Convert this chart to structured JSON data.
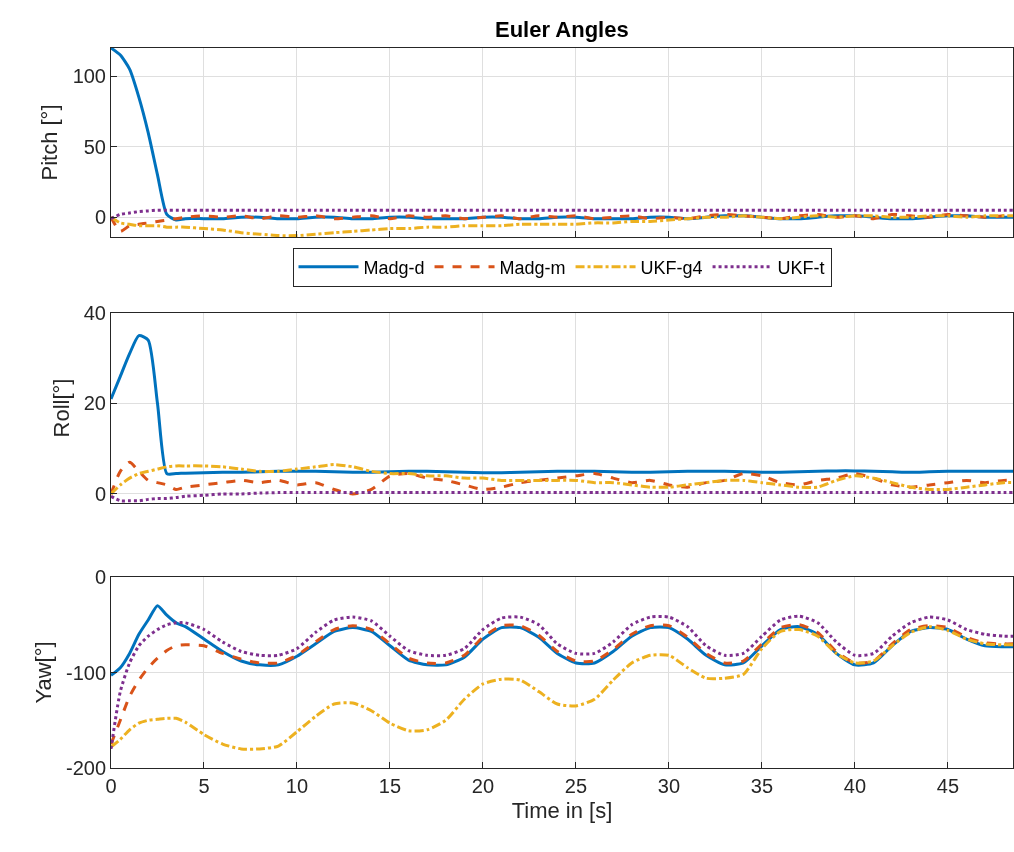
{
  "chart_data": [
    {
      "type": "line",
      "title": "Euler Angles",
      "ylabel": "Pitch [°]",
      "legend": "bottom",
      "grid": true,
      "tick_labels": "y",
      "x": [
        0,
        0.5,
        1,
        1.5,
        2,
        2.5,
        3,
        3.5,
        4,
        5,
        6,
        7,
        8,
        9,
        10,
        11,
        12,
        13,
        14,
        15,
        16,
        17,
        18,
        19,
        20,
        21,
        22,
        23,
        24,
        25,
        26,
        27,
        28,
        29,
        30,
        31,
        32,
        33,
        34,
        35,
        36,
        37,
        38,
        39,
        40,
        41,
        42,
        43,
        44,
        45,
        46,
        47,
        48,
        48.5
      ],
      "xlim": [
        0,
        48.5
      ],
      "xticks": [
        0,
        5,
        10,
        15,
        20,
        25,
        30,
        35,
        40,
        45
      ],
      "ylim": [
        -14,
        120
      ],
      "yticks": [
        0,
        50,
        100
      ],
      "series": [
        {
          "name": "Madg-d",
          "color": "#0072bd",
          "line_style": "solid",
          "values": [
            120,
            115,
            105,
            85,
            60,
            30,
            2,
            -2,
            -1,
            -1,
            -1,
            0,
            0,
            -1,
            -1,
            0,
            0,
            -1,
            -1,
            0,
            0,
            -1,
            -1,
            -1,
            0,
            0,
            -1,
            -1,
            0,
            0,
            -1,
            -1,
            -1,
            0,
            0,
            -1,
            0,
            1,
            1,
            0,
            -1,
            -1,
            0,
            1,
            1,
            0,
            -1,
            -1,
            0,
            1,
            1,
            0,
            0,
            0
          ]
        },
        {
          "name": "Madg-m",
          "color": "#d95319",
          "line_style": "dashed",
          "values": [
            0,
            -10,
            -6,
            -5,
            -4,
            -3,
            -2,
            -1,
            0,
            1,
            0,
            1,
            -1,
            1,
            0,
            1,
            -1,
            0,
            1,
            -1,
            1,
            0,
            1,
            -1,
            0,
            1,
            -1,
            1,
            0,
            1,
            -1,
            0,
            1,
            -1,
            0,
            -1,
            1,
            2,
            1,
            0,
            -1,
            1,
            2,
            0,
            1,
            -1,
            2,
            1,
            0,
            2,
            1,
            0,
            1,
            1
          ]
        },
        {
          "name": "UKF-g4",
          "color": "#edb120",
          "line_style": "dashdot",
          "values": [
            0,
            -4,
            -5,
            -6,
            -6,
            -6,
            -7,
            -7,
            -7,
            -8,
            -9,
            -11,
            -12,
            -13,
            -13,
            -12,
            -11,
            -10,
            -9,
            -8,
            -8,
            -7,
            -7,
            -6,
            -6,
            -6,
            -5,
            -5,
            -5,
            -5,
            -4,
            -4,
            -3,
            -3,
            -2,
            -1,
            0,
            0,
            1,
            0,
            -1,
            0,
            1,
            0,
            1,
            1,
            0,
            0,
            1,
            1,
            0,
            1,
            1,
            1
          ]
        },
        {
          "name": "UKF-t",
          "color": "#7e2f8e",
          "line_style": "dotted",
          "values": [
            -1,
            2,
            3,
            4,
            4.5,
            5,
            5,
            5,
            5,
            5,
            5,
            5,
            5,
            5,
            5,
            5,
            5,
            5,
            5,
            5,
            5,
            5,
            5,
            5,
            5,
            5,
            5,
            5,
            5,
            5,
            5,
            5,
            5,
            5,
            5,
            5,
            5,
            5,
            5,
            5,
            5,
            5,
            5,
            5,
            5,
            5,
            5,
            5,
            5,
            5,
            5,
            5,
            5,
            5
          ]
        }
      ]
    },
    {
      "type": "line",
      "ylabel": "Roll[°]",
      "grid": true,
      "tick_labels": "y",
      "x": [
        0,
        0.5,
        1,
        1.5,
        2,
        2.5,
        3,
        3.5,
        4,
        5,
        6,
        7,
        8,
        9,
        10,
        11,
        12,
        13,
        14,
        15,
        16,
        17,
        18,
        19,
        20,
        21,
        22,
        23,
        24,
        25,
        26,
        27,
        28,
        29,
        30,
        31,
        32,
        33,
        34,
        35,
        36,
        37,
        38,
        39,
        40,
        41,
        42,
        43,
        44,
        45,
        46,
        47,
        48,
        48.5
      ],
      "xlim": [
        0,
        48.5
      ],
      "xticks": [
        0,
        5,
        10,
        15,
        20,
        25,
        30,
        35,
        40,
        45
      ],
      "ylim": [
        -2,
        40
      ],
      "yticks": [
        0,
        20,
        40
      ],
      "series": [
        {
          "color": "#0072bd",
          "line_style": "solid",
          "values": [
            21,
            26,
            31,
            35,
            34,
            20,
            4.5,
            4.5,
            4.6,
            4.7,
            4.8,
            4.8,
            4.9,
            5,
            5,
            5,
            4.9,
            4.8,
            4.8,
            4.9,
            5,
            5,
            4.9,
            4.8,
            4.7,
            4.7,
            4.8,
            4.9,
            5,
            5,
            5,
            4.9,
            4.8,
            4.8,
            4.9,
            5,
            5,
            5,
            4.9,
            4.8,
            4.8,
            4.9,
            5,
            5.1,
            5.1,
            5,
            4.9,
            4.8,
            4.9,
            5,
            5,
            5,
            5,
            5
          ]
        },
        {
          "color": "#d95319",
          "line_style": "dashed",
          "values": [
            0,
            5,
            7,
            5,
            3,
            2.5,
            2,
            1,
            1.5,
            2,
            2.5,
            3,
            2.5,
            3,
            2,
            2.5,
            1,
            0,
            1,
            4,
            4.5,
            3.5,
            3,
            2,
            1,
            1.5,
            2.5,
            3,
            3.5,
            4,
            4.5,
            3.5,
            2.5,
            3,
            2,
            1.5,
            2.5,
            3,
            4.5,
            4,
            2.5,
            2,
            3,
            3.5,
            4.5,
            3.5,
            2,
            1.5,
            2,
            2.5,
            3,
            2.5,
            3,
            3
          ]
        },
        {
          "color": "#edb120",
          "line_style": "dashdot",
          "values": [
            0,
            2,
            3.5,
            4.5,
            5,
            5.5,
            6,
            6.2,
            6.2,
            6.2,
            6,
            5.5,
            5,
            5,
            5.5,
            6,
            6.5,
            6,
            5,
            4.5,
            4.5,
            4,
            4,
            3.5,
            3.5,
            3,
            3,
            3,
            3,
            3,
            2.5,
            2.5,
            2,
            1.5,
            1.5,
            2,
            2.5,
            3,
            3,
            2.5,
            2,
            1.5,
            1.5,
            3,
            4,
            3.5,
            2.5,
            1.5,
            1,
            1,
            1.5,
            2,
            2.5,
            2.5
          ]
        },
        {
          "color": "#7e2f8e",
          "line_style": "dotted",
          "values": [
            -0.5,
            -1.5,
            -1.5,
            -1.5,
            -1.2,
            -1,
            -1,
            -0.8,
            -0.5,
            -0.3,
            0,
            0,
            0.2,
            0.3,
            0.3,
            0.3,
            0.3,
            0.3,
            0.3,
            0.3,
            0.3,
            0.3,
            0.3,
            0.3,
            0.3,
            0.3,
            0.3,
            0.3,
            0.3,
            0.3,
            0.3,
            0.3,
            0.3,
            0.3,
            0.3,
            0.3,
            0.3,
            0.3,
            0.3,
            0.3,
            0.3,
            0.3,
            0.3,
            0.3,
            0.3,
            0.3,
            0.3,
            0.3,
            0.3,
            0.3,
            0.3,
            0.3,
            0.3,
            0.3
          ]
        }
      ]
    },
    {
      "type": "line",
      "ylabel": "Yaw[°]",
      "xlabel": "Time in [s]",
      "grid": true,
      "x": [
        0,
        0.5,
        1,
        1.5,
        2,
        2.5,
        3,
        3.5,
        4,
        5,
        6,
        7,
        8,
        9,
        10,
        11,
        12,
        13,
        14,
        15,
        16,
        17,
        18,
        19,
        20,
        21,
        22,
        23,
        24,
        25,
        26,
        27,
        28,
        29,
        30,
        31,
        32,
        33,
        34,
        35,
        36,
        37,
        38,
        39,
        40,
        41,
        42,
        43,
        44,
        45,
        46,
        47,
        48,
        48.5
      ],
      "xlim": [
        0,
        48.5
      ],
      "xticks": [
        0,
        5,
        10,
        15,
        20,
        25,
        30,
        35,
        40,
        45
      ],
      "ylim": [
        -200,
        0
      ],
      "yticks": [
        -200,
        -100,
        0
      ],
      "series": [
        {
          "color": "#0072bd",
          "line_style": "solid",
          "values": [
            -103,
            -95,
            -80,
            -60,
            -45,
            -30,
            -40,
            -48,
            -52,
            -65,
            -78,
            -88,
            -92,
            -92,
            -83,
            -70,
            -57,
            -53,
            -57,
            -72,
            -87,
            -92,
            -92,
            -84,
            -65,
            -53,
            -53,
            -63,
            -80,
            -90,
            -90,
            -78,
            -62,
            -53,
            -53,
            -65,
            -82,
            -92,
            -90,
            -72,
            -55,
            -52,
            -60,
            -80,
            -92,
            -90,
            -72,
            -57,
            -53,
            -55,
            -65,
            -72,
            -73,
            -73
          ]
        },
        {
          "color": "#d95319",
          "line_style": "dashed",
          "values": [
            -175,
            -150,
            -125,
            -108,
            -95,
            -85,
            -77,
            -72,
            -71,
            -72,
            -80,
            -86,
            -90,
            -90,
            -82,
            -68,
            -55,
            -51,
            -55,
            -70,
            -85,
            -90,
            -90,
            -82,
            -63,
            -51,
            -51,
            -61,
            -78,
            -88,
            -88,
            -76,
            -60,
            -51,
            -51,
            -63,
            -80,
            -90,
            -88,
            -70,
            -53,
            -50,
            -58,
            -78,
            -90,
            -88,
            -70,
            -55,
            -51,
            -53,
            -63,
            -69,
            -70,
            -70
          ]
        },
        {
          "color": "#edb120",
          "line_style": "dashdot",
          "values": [
            -178,
            -170,
            -160,
            -153,
            -150,
            -149,
            -148,
            -148,
            -152,
            -165,
            -175,
            -180,
            -180,
            -177,
            -162,
            -146,
            -133,
            -132,
            -140,
            -153,
            -161,
            -160,
            -150,
            -128,
            -112,
            -107,
            -108,
            -120,
            -133,
            -135,
            -128,
            -108,
            -90,
            -82,
            -82,
            -95,
            -106,
            -106,
            -102,
            -75,
            -57,
            -55,
            -62,
            -80,
            -90,
            -88,
            -72,
            -58,
            -52,
            -56,
            -65,
            -70,
            -71,
            -71
          ]
        },
        {
          "color": "#7e2f8e",
          "line_style": "dotted",
          "values": [
            -180,
            -120,
            -90,
            -72,
            -62,
            -55,
            -50,
            -48,
            -48,
            -55,
            -68,
            -78,
            -82,
            -82,
            -75,
            -58,
            -45,
            -42,
            -46,
            -62,
            -77,
            -82,
            -82,
            -75,
            -55,
            -43,
            -42,
            -50,
            -70,
            -80,
            -80,
            -68,
            -50,
            -42,
            -42,
            -52,
            -72,
            -82,
            -80,
            -62,
            -45,
            -41,
            -48,
            -68,
            -82,
            -80,
            -62,
            -48,
            -42,
            -45,
            -55,
            -60,
            -62,
            -62
          ]
        }
      ]
    }
  ]
}
